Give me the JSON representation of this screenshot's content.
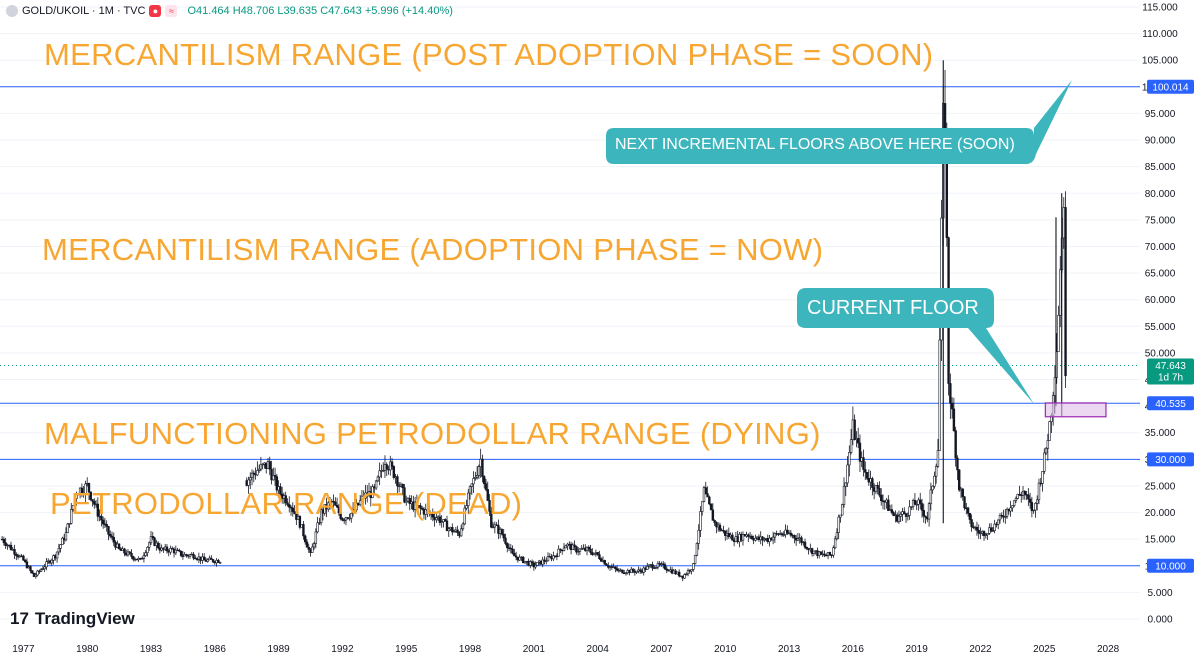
{
  "header": {
    "symbol": "GOLD/UKOIL · 1M · TVC",
    "ohlc": "O41.464  H48.706  L39.635  C47.643  +5.996 (+14.40%)"
  },
  "annotations": [
    {
      "id": "mercantilism-post",
      "text": "MERCANTILISM RANGE (POST ADOPTION PHASE = SOON)"
    },
    {
      "id": "mercantilism-adoption",
      "text": "MERCANTILISM RANGE (ADOPTION PHASE = NOW)"
    },
    {
      "id": "malfunctioning-petrodollar",
      "text": "MALFUNCTIONING PETRODOLLAR RANGE (DYING)"
    },
    {
      "id": "petrodollar-dead",
      "text": "PETRODOLLAR RANGE (DEAD)"
    }
  ],
  "callouts": [
    {
      "id": "next-floors",
      "text": "NEXT INCREMENTAL FLOORS ABOVE HERE (SOON)"
    },
    {
      "id": "current-floor",
      "text": "CURRENT FLOOR"
    }
  ],
  "logo": {
    "text": "TradingView"
  },
  "colors": {
    "candle_up": "#131722",
    "candle_down": "#131722",
    "hline": "#2962ff",
    "annotation": "#f7a631",
    "callout_bg": "#3db5bd",
    "price_tag": "#089981",
    "zone_fill": "#e1bee7",
    "zone_border": "#9c27b0"
  },
  "chart_data": {
    "type": "candlestick",
    "title": "GOLD/UKOIL · 1M · TVC",
    "x_ticks": [
      "1977",
      "1980",
      "1983",
      "1986",
      "1989",
      "1992",
      "1995",
      "1998",
      "2001",
      "2004",
      "2007",
      "2010",
      "2013",
      "2016",
      "2019",
      "2022",
      "2025",
      "2028"
    ],
    "y_ticks": [
      "0.000",
      "5.000",
      "10.000",
      "15.000",
      "20.000",
      "25.000",
      "30.000",
      "35.000",
      "40.000",
      "45.000",
      "50.000",
      "55.000",
      "60.000",
      "65.000",
      "70.000",
      "75.000",
      "80.000",
      "85.000",
      "90.000",
      "95.000",
      "100.000",
      "105.000",
      "110.000",
      "115.000"
    ],
    "ylim": [
      0,
      115
    ],
    "xlim": [
      1975.9,
      2029.5
    ],
    "horizontal_levels": [
      {
        "value": 100.014,
        "label": "100.014"
      },
      {
        "value": 40.535,
        "label": "40.535"
      },
      {
        "value": 30.0,
        "label": "30.000"
      },
      {
        "value": 10.0,
        "label": "10.000"
      }
    ],
    "last_price": {
      "value": 47.643,
      "label": "47.643",
      "countdown": "1d 7h"
    },
    "series": [
      {
        "x": [
          1976.0,
          1976.5,
          1977.0,
          1977.5,
          1978.0,
          1978.5,
          1979.0,
          1979.5,
          1980.0,
          1980.5,
          1981.0,
          1981.5,
          1982.0,
          1982.5,
          1983.0,
          1983.5,
          1984.0,
          1984.5,
          1985.0,
          1985.5,
          1986.0,
          1986.3
        ],
        "y": [
          15,
          13,
          11,
          8,
          10,
          12,
          16,
          24,
          25,
          20,
          16,
          13,
          12,
          11,
          15,
          13,
          13,
          12,
          12,
          11,
          11,
          11
        ]
      },
      {
        "x": [
          1987.5,
          1988.0,
          1988.5,
          1989.0,
          1989.5,
          1990.0,
          1990.5,
          1991.0,
          1991.5,
          1992.0,
          1992.5,
          1993.0,
          1993.5,
          1994.0,
          1994.5,
          1995.0,
          1995.5,
          1996.0,
          1996.5,
          1997.0,
          1997.5,
          1998.0,
          1998.5,
          1999.0,
          1999.5,
          2000.0,
          2000.5,
          2001.0,
          2001.5,
          2002.0,
          2002.5,
          2003.0,
          2003.5,
          2004.0,
          2004.5,
          2005.0,
          2005.5,
          2006.0,
          2006.5,
          2007.0,
          2007.5,
          2008.0,
          2008.5,
          2009.0,
          2009.5,
          2010.0,
          2010.5,
          2011.0,
          2011.5,
          2012.0,
          2012.5,
          2013.0,
          2013.5,
          2014.0,
          2014.5,
          2015.0,
          2015.5,
          2016.0,
          2016.5,
          2017.0,
          2017.5,
          2018.0,
          2018.5,
          2019.0,
          2019.5,
          2020.0,
          2020.3,
          2020.5,
          2021.0,
          2021.5,
          2022.0,
          2022.5,
          2023.0,
          2023.5,
          2024.0,
          2024.5,
          2025.0,
          2025.3,
          2025.6,
          2025.9,
          2026.0
        ],
        "y": [
          26,
          28,
          29,
          24,
          22,
          18,
          12,
          20,
          22,
          19,
          20,
          23,
          24,
          30,
          27,
          22,
          21,
          20,
          19,
          17,
          16,
          24,
          30,
          18,
          16,
          12,
          11,
          10,
          11,
          12,
          14,
          13,
          13,
          12,
          10,
          9,
          9,
          9,
          10,
          10,
          9,
          8,
          10,
          24,
          18,
          16,
          15,
          16,
          15,
          15,
          16,
          16,
          15,
          13,
          12,
          12,
          22,
          36,
          28,
          25,
          22,
          19,
          20,
          22,
          19,
          32,
          105,
          45,
          25,
          18,
          16,
          17,
          19,
          22,
          24,
          20,
          30,
          38,
          52,
          80,
          47.6
        ]
      }
    ],
    "annotations": [
      "MERCANTILISM RANGE (POST ADOPTION PHASE = SOON)",
      "MERCANTILISM RANGE (ADOPTION PHASE = NOW)",
      "MALFUNCTIONING PETRODOLLAR RANGE (DYING)",
      "PETRODOLLAR RANGE (DEAD)",
      "NEXT INCREMENTAL FLOORS ABOVE HERE (SOON)",
      "CURRENT FLOOR"
    ]
  }
}
